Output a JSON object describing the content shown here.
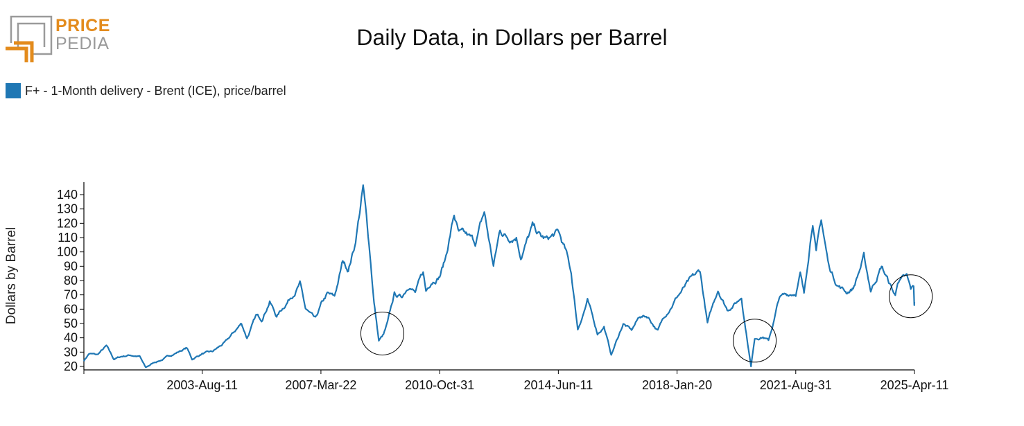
{
  "logo": {
    "line1": "PRICE",
    "line2": "PEDIA",
    "colors": {
      "orange": "#e38b1c",
      "gray": "#9a9a9a"
    }
  },
  "title": "Daily Data, in Dollars per Barrel",
  "legend": {
    "label": "F+ - 1-Month delivery - Brent (ICE), price/barrel",
    "color": "#1f77b4"
  },
  "chart_data": {
    "type": "line",
    "title": "Daily Data, in Dollars per Barrel",
    "ylabel": "Dollars by Barrel",
    "xlabel": "",
    "ylim": [
      18,
      148
    ],
    "yticks": [
      20,
      30,
      40,
      50,
      60,
      70,
      80,
      90,
      100,
      110,
      120,
      130,
      140
    ],
    "xlim": [
      "2000-01-04",
      "2025-04-11"
    ],
    "xticks": [
      "2003-Aug-11",
      "2007-Mar-22",
      "2010-Oct-31",
      "2014-Jun-11",
      "2018-Jan-20",
      "2021-Aug-31",
      "2025-Apr-11"
    ],
    "xtick_dates": [
      "2003-08-11",
      "2007-03-22",
      "2010-10-31",
      "2014-06-11",
      "2018-01-20",
      "2021-08-31",
      "2025-04-11"
    ],
    "grid": false,
    "legend_position": "top-left",
    "series": [
      {
        "name": "F+ - 1-Month delivery - Brent (ICE), price/barrel",
        "color": "#1f77b4",
        "points": [
          [
            "2000-01-04",
            24
          ],
          [
            "2000-03-01",
            29
          ],
          [
            "2000-06-01",
            28
          ],
          [
            "2000-09-10",
            34
          ],
          [
            "2000-12-01",
            25
          ],
          [
            "2001-03-01",
            27
          ],
          [
            "2001-06-01",
            28
          ],
          [
            "2001-09-15",
            27
          ],
          [
            "2001-11-20",
            19
          ],
          [
            "2002-03-01",
            23
          ],
          [
            "2002-06-01",
            25
          ],
          [
            "2002-09-01",
            28
          ],
          [
            "2003-02-20",
            33
          ],
          [
            "2003-04-20",
            25
          ],
          [
            "2003-08-11",
            29
          ],
          [
            "2003-12-01",
            30
          ],
          [
            "2004-05-01",
            37
          ],
          [
            "2004-10-20",
            50
          ],
          [
            "2004-12-20",
            40
          ],
          [
            "2005-04-01",
            55
          ],
          [
            "2005-06-01",
            53
          ],
          [
            "2005-08-30",
            66
          ],
          [
            "2005-11-15",
            55
          ],
          [
            "2006-04-01",
            67
          ],
          [
            "2006-08-01",
            78
          ],
          [
            "2006-10-01",
            60
          ],
          [
            "2007-01-20",
            52
          ],
          [
            "2007-03-22",
            62
          ],
          [
            "2007-06-01",
            70
          ],
          [
            "2007-08-20",
            68
          ],
          [
            "2007-11-20",
            93
          ],
          [
            "2008-01-20",
            88
          ],
          [
            "2008-04-01",
            105
          ],
          [
            "2008-07-03",
            145
          ],
          [
            "2008-09-15",
            100
          ],
          [
            "2008-11-01",
            65
          ],
          [
            "2008-12-24",
            38
          ],
          [
            "2009-02-15",
            42
          ],
          [
            "2009-04-01",
            50
          ],
          [
            "2009-06-15",
            70
          ],
          [
            "2009-09-01",
            68
          ],
          [
            "2009-12-01",
            78
          ],
          [
            "2010-02-01",
            72
          ],
          [
            "2010-05-01",
            85
          ],
          [
            "2010-06-01",
            72
          ],
          [
            "2010-08-01",
            80
          ],
          [
            "2010-10-31",
            84
          ],
          [
            "2011-01-01",
            95
          ],
          [
            "2011-04-10",
            126
          ],
          [
            "2011-06-01",
            112
          ],
          [
            "2011-09-01",
            110
          ],
          [
            "2011-12-01",
            106
          ],
          [
            "2012-03-10",
            127
          ],
          [
            "2012-06-20",
            90
          ],
          [
            "2012-09-01",
            115
          ],
          [
            "2012-12-01",
            110
          ],
          [
            "2013-03-01",
            112
          ],
          [
            "2013-04-20",
            98
          ],
          [
            "2013-08-28",
            117
          ],
          [
            "2013-12-01",
            110
          ],
          [
            "2014-02-01",
            108
          ],
          [
            "2014-06-11",
            113
          ],
          [
            "2014-09-01",
            100
          ],
          [
            "2014-11-01",
            85
          ],
          [
            "2015-01-13",
            46
          ],
          [
            "2015-05-01",
            66
          ],
          [
            "2015-08-20",
            43
          ],
          [
            "2015-11-01",
            48
          ],
          [
            "2016-01-20",
            28
          ],
          [
            "2016-06-01",
            50
          ],
          [
            "2016-09-01",
            45
          ],
          [
            "2016-12-01",
            55
          ],
          [
            "2017-03-01",
            55
          ],
          [
            "2017-06-20",
            45
          ],
          [
            "2017-09-01",
            55
          ],
          [
            "2018-01-20",
            69
          ],
          [
            "2018-05-20",
            78
          ],
          [
            "2018-10-03",
            86
          ],
          [
            "2018-12-24",
            50
          ],
          [
            "2019-04-20",
            74
          ],
          [
            "2019-08-01",
            60
          ],
          [
            "2019-12-01",
            66
          ],
          [
            "2020-01-06",
            69
          ],
          [
            "2020-02-01",
            56
          ],
          [
            "2020-04-21",
            20
          ],
          [
            "2020-06-01",
            40
          ],
          [
            "2020-09-01",
            41
          ],
          [
            "2020-11-01",
            38
          ],
          [
            "2021-01-01",
            52
          ],
          [
            "2021-03-01",
            68
          ],
          [
            "2021-08-31",
            72
          ],
          [
            "2021-10-20",
            85
          ],
          [
            "2021-12-01",
            70
          ],
          [
            "2022-03-08",
            124
          ],
          [
            "2022-04-15",
            100
          ],
          [
            "2022-06-10",
            122
          ],
          [
            "2022-09-01",
            90
          ],
          [
            "2022-12-01",
            78
          ],
          [
            "2023-03-17",
            72
          ],
          [
            "2023-06-01",
            75
          ],
          [
            "2023-09-27",
            96
          ],
          [
            "2023-12-12",
            73
          ],
          [
            "2024-04-10",
            90
          ],
          [
            "2024-09-10",
            69
          ],
          [
            "2024-10-07",
            80
          ],
          [
            "2025-01-15",
            82
          ],
          [
            "2025-03-01",
            73
          ],
          [
            "2025-04-02",
            75
          ],
          [
            "2025-04-09",
            63
          ],
          [
            "2025-04-11",
            65
          ]
        ]
      }
    ],
    "annotations": [
      {
        "type": "circle",
        "x": "2009-02-01",
        "y": 43
      },
      {
        "type": "circle",
        "x": "2020-06-01",
        "y": 38
      },
      {
        "type": "circle",
        "x": "2025-03-01",
        "y": 69
      }
    ]
  }
}
